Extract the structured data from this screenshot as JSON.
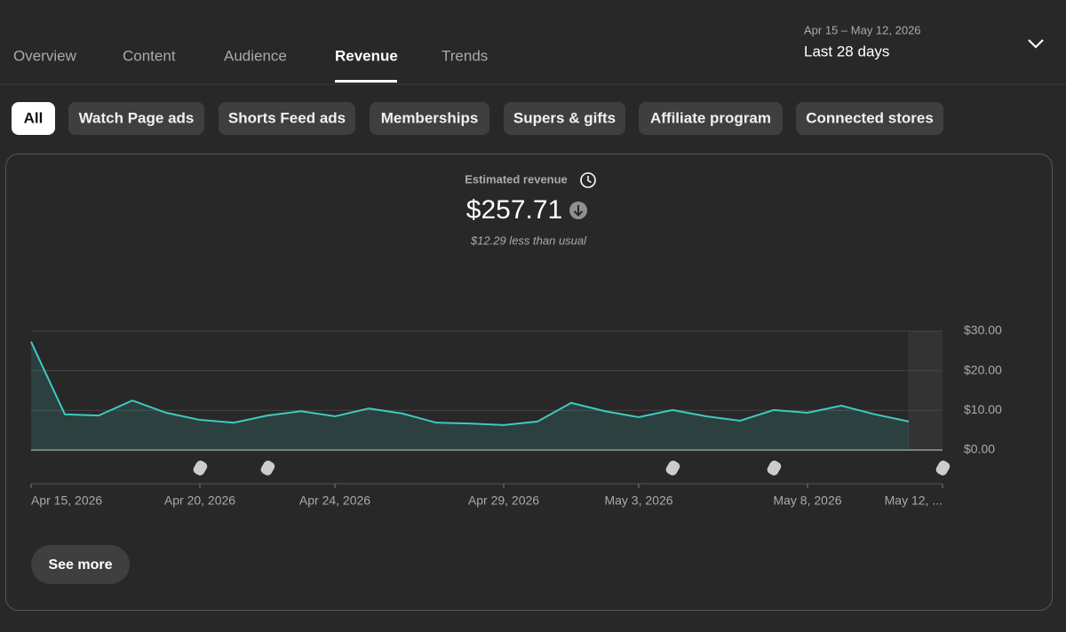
{
  "tabs": [
    "Overview",
    "Content",
    "Audience",
    "Revenue",
    "Trends"
  ],
  "date_range": {
    "range": "Apr 15 – May 12, 2026",
    "label": "Last 28 days"
  },
  "chips": [
    "All",
    "Watch Page ads",
    "Shorts Feed ads",
    "Memberships",
    "Supers & gifts",
    "Affiliate program",
    "Connected stores"
  ],
  "summary": {
    "metric": "Estimated revenue",
    "total": "$257.71",
    "comparison": "$12.29 less than usual"
  },
  "see_more": "See more",
  "chart_data": {
    "type": "line",
    "categories": [
      "Apr 15, 2026",
      null,
      null,
      null,
      null,
      "Apr 20, 2026",
      null,
      null,
      null,
      "Apr 24, 2026",
      null,
      null,
      null,
      null,
      "Apr 29, 2026",
      null,
      null,
      null,
      "May 3, 2026",
      null,
      null,
      null,
      null,
      "May 8, 2026",
      null,
      null,
      null,
      "May 12, ..."
    ],
    "series": [
      {
        "color": "#3fc9c0",
        "values": [
          27.3,
          9.0,
          8.7,
          12.5,
          9.4,
          7.6,
          6.9,
          8.7,
          9.8,
          8.5,
          10.5,
          9.2,
          6.9,
          6.7,
          6.3,
          7.2,
          11.9,
          9.8,
          8.3,
          10.1,
          8.5,
          7.4,
          10.1,
          9.4,
          11.2,
          9.0,
          7.2,
          null
        ]
      }
    ],
    "ylim": [
      0,
      30
    ],
    "yticks": [
      {
        "value": 0,
        "label": "$0.00"
      },
      {
        "value": 10,
        "label": "$10.00"
      },
      {
        "value": 20,
        "label": "$20.00"
      },
      {
        "value": 30,
        "label": "$30.00"
      }
    ],
    "grid": true
  }
}
